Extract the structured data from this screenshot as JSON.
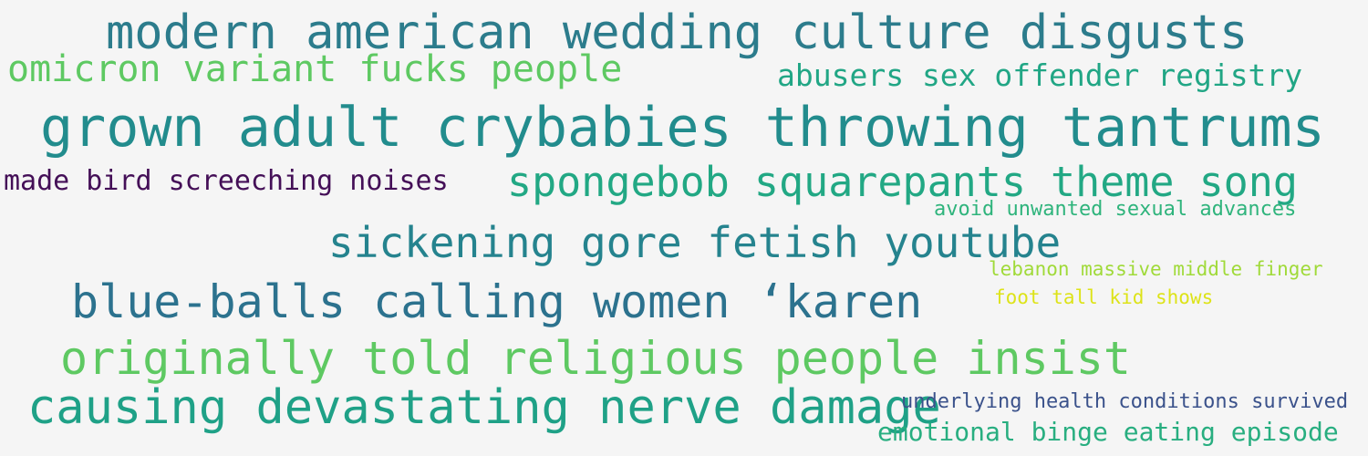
{
  "word_cloud": {
    "phrases": [
      {
        "text": "modern american wedding culture disgusts",
        "color": "#2c7c8c"
      },
      {
        "text": "omicron variant fucks people",
        "color": "#5ec962"
      },
      {
        "text": "abusers sex offender registry",
        "color": "#21a685"
      },
      {
        "text": "grown adult crybabies throwing tantrums",
        "color": "#228c8d"
      },
      {
        "text": "made bird screeching noises",
        "color": "#440f57"
      },
      {
        "text": "spongebob squarepants theme song",
        "color": "#22a884"
      },
      {
        "text": "avoid unwanted sexual advances",
        "color": "#2fb47c"
      },
      {
        "text": "sickening gore fetish youtube",
        "color": "#25838e"
      },
      {
        "text": "lebanon massive middle finger",
        "color": "#a0da39"
      },
      {
        "text": "blue-balls calling women ‘karen",
        "color": "#2c728e"
      },
      {
        "text": "foot tall kid shows",
        "color": "#dde318"
      },
      {
        "text": "originally told religious people insist",
        "color": "#5ec962"
      },
      {
        "text": "causing devastating nerve damage",
        "color": "#1fa187"
      },
      {
        "text": "underlying health conditions survived",
        "color": "#3b528b"
      },
      {
        "text": "emotional binge eating episode",
        "color": "#28ae80"
      }
    ]
  }
}
